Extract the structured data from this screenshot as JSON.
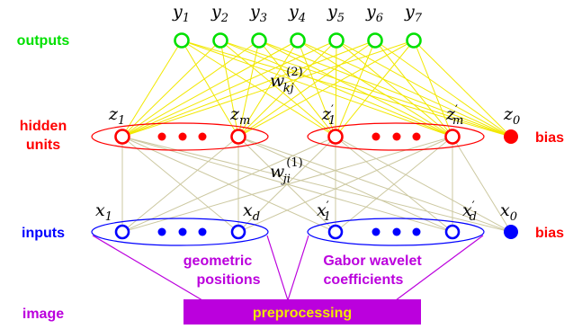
{
  "outputs": {
    "label": "outputs",
    "nodes": [
      {
        "name": "y",
        "sub": "1"
      },
      {
        "name": "y",
        "sub": "2"
      },
      {
        "name": "y",
        "sub": "3"
      },
      {
        "name": "y",
        "sub": "4"
      },
      {
        "name": "y",
        "sub": "5"
      },
      {
        "name": "y",
        "sub": "6"
      },
      {
        "name": "y",
        "sub": "7"
      }
    ]
  },
  "hidden": {
    "label_line1": "hidden",
    "label_line2": "units",
    "group1": {
      "first": {
        "name": "z",
        "sub": "1",
        "prime": ""
      },
      "last": {
        "name": "z",
        "sub": "m",
        "prime": ""
      }
    },
    "group2": {
      "first": {
        "name": "z",
        "sub": "1",
        "prime": "′"
      },
      "last": {
        "name": "z",
        "sub": "m",
        "prime": "′"
      }
    },
    "bias": {
      "name": "z",
      "sub": "0",
      "label": "bias"
    }
  },
  "weights": {
    "upper": {
      "name": "w",
      "sub": "kj",
      "sup": "(2)"
    },
    "lower": {
      "name": "w",
      "sub": "ji",
      "sup": "(1)"
    }
  },
  "inputs": {
    "label": "inputs",
    "group1": {
      "first": {
        "name": "x",
        "sub": "1",
        "prime": ""
      },
      "last": {
        "name": "x",
        "sub": "d",
        "prime": ""
      },
      "caption_line1": "geometric",
      "caption_line2": "positions"
    },
    "group2": {
      "first": {
        "name": "x",
        "sub": "1",
        "prime": "′"
      },
      "last": {
        "name": "x",
        "sub": "d",
        "prime": "′"
      },
      "caption_line1": "Gabor wavelet",
      "caption_line2": "coefficients"
    },
    "bias": {
      "name": "x",
      "sub": "0",
      "label": "bias"
    }
  },
  "image": {
    "label": "image",
    "box_label": "preprocessing"
  },
  "colors": {
    "output": "#00e000",
    "hidden": "#ff0000",
    "input": "#0000ff",
    "purple": "#bb00dd",
    "edge": "#f2e800",
    "hidden_input_edge": "#ccc8a0"
  }
}
